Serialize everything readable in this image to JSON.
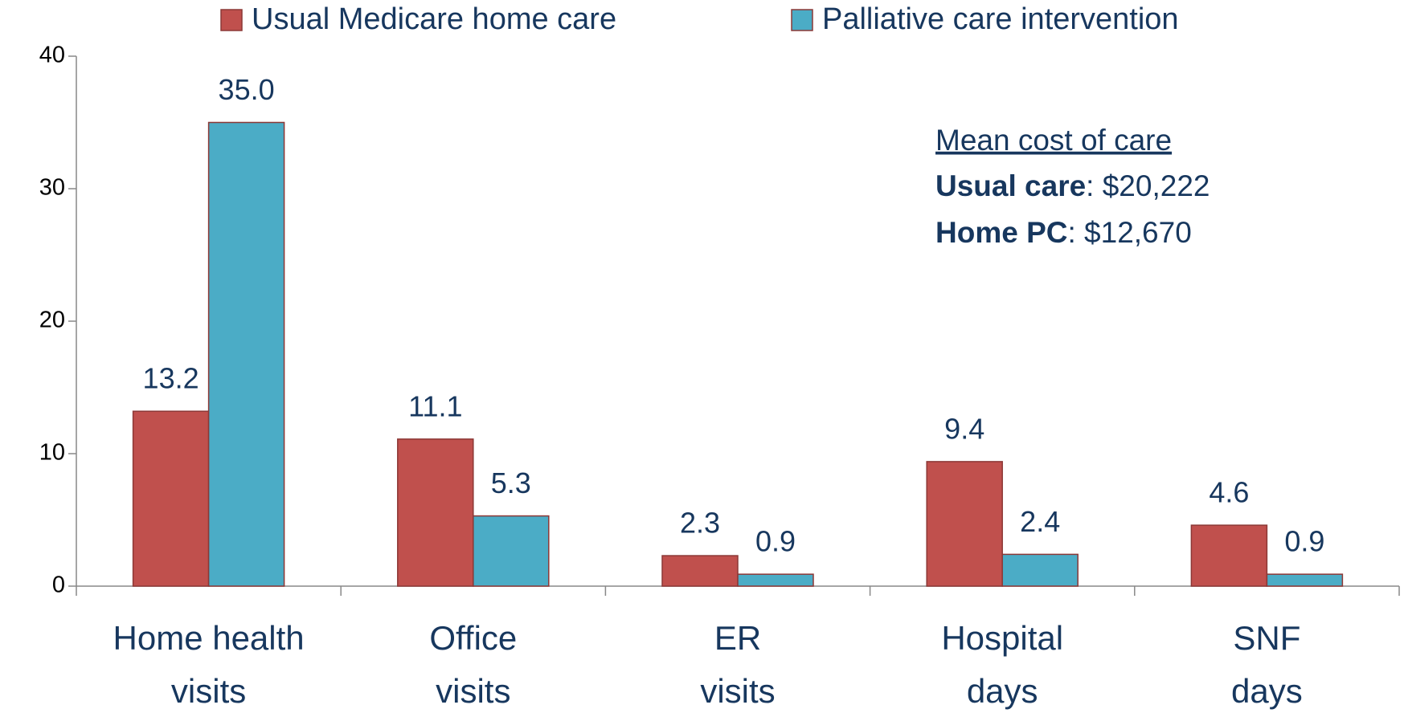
{
  "chart_data": {
    "type": "bar",
    "categories": [
      [
        "Home health",
        "visits"
      ],
      [
        "Office",
        "visits"
      ],
      [
        "ER",
        "visits"
      ],
      [
        "Hospital",
        "days"
      ],
      [
        "SNF",
        "days"
      ]
    ],
    "series": [
      {
        "name": "Usual Medicare home care",
        "color": "#c0504d",
        "values": [
          13.2,
          11.1,
          2.3,
          9.4,
          4.6
        ],
        "value_labels": [
          "13.2",
          "11.1",
          "2.3",
          "9.4",
          "4.6"
        ]
      },
      {
        "name": "Palliative care intervention",
        "color": "#4bacc6",
        "values": [
          35,
          5.3,
          0.9,
          2.4,
          0.9
        ],
        "value_labels": [
          "35.0",
          "5.3",
          "0.9",
          "2.4",
          "0.9"
        ]
      }
    ],
    "ylim": [
      0,
      40
    ],
    "yticks": [
      0,
      10,
      20,
      30,
      40
    ],
    "grid": false,
    "legend": "top",
    "annotation": {
      "title": "Mean cost of care",
      "lines": [
        {
          "label": "Usual care",
          "text": ": $20,222"
        },
        {
          "label": "Home PC",
          "text": ":   $12,670"
        }
      ]
    }
  }
}
